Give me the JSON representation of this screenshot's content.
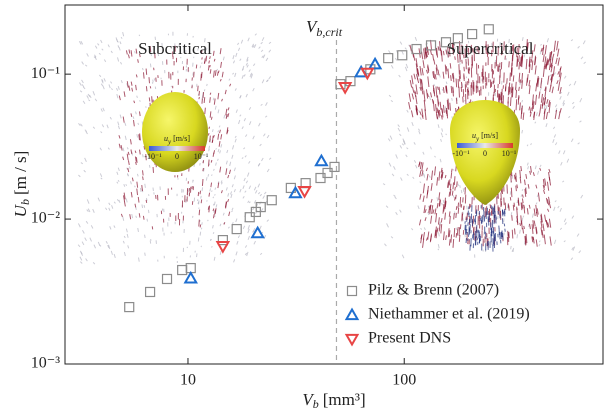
{
  "chart_data": {
    "type": "scatter",
    "xlabel": {
      "symbol": "V",
      "sub": "b",
      "unit": "[mm³]"
    },
    "ylabel": {
      "symbol": "U",
      "sub": "b",
      "unit": "[m / s]"
    },
    "xscale": "log",
    "yscale": "log",
    "xlim": [
      2.7,
      830
    ],
    "ylim": [
      0.001,
      0.3
    ],
    "xticks": [
      10,
      100
    ],
    "yticks": [
      {
        "value": 0.001,
        "label": "10⁻³"
      },
      {
        "value": 0.01,
        "label": "10⁻²"
      },
      {
        "value": 0.1,
        "label": "10⁻¹"
      }
    ],
    "critical_line": {
      "x": 48.6,
      "label": {
        "symbol": "V",
        "sub": "b,crit"
      }
    },
    "legend": "lower right",
    "series": [
      {
        "name": "Pilz & Brenn (2007)",
        "color": "#8c8c8c",
        "marker": "square",
        "x": [
          5.35,
          6.68,
          8.0,
          9.4,
          10.3,
          14.5,
          16.8,
          19.3,
          20.6,
          21.7,
          24.4,
          29.9,
          35,
          41,
          44.2,
          47.6,
          50.7,
          56.4,
          69.7,
          84.3,
          97.9,
          114,
          133,
          156,
          177,
          206,
          246
        ],
        "values": [
          0.00247,
          0.00314,
          0.00386,
          0.00445,
          0.00459,
          0.00716,
          0.00853,
          0.0103,
          0.0112,
          0.0121,
          0.0135,
          0.0164,
          0.0177,
          0.0192,
          0.0208,
          0.0229,
          0.0853,
          0.0895,
          0.108,
          0.129,
          0.135,
          0.149,
          0.158,
          0.166,
          0.177,
          0.189,
          0.204
        ]
      },
      {
        "name": "Niethammer et al. (2019)",
        "color": "#1f6fd0",
        "marker": "triangle-up",
        "x": [
          10.3,
          21.0,
          31.4,
          41.4,
          63.2,
          73.3
        ],
        "values": [
          0.0039,
          0.008,
          0.0151,
          0.0251,
          0.103,
          0.117
        ]
      },
      {
        "name": "Present DNS",
        "color": "#e84545",
        "marker": "triangle-down",
        "x": [
          14.5,
          34.6,
          53.3,
          67.5
        ],
        "values": [
          0.0065,
          0.0156,
          0.0813,
          0.102
        ]
      }
    ],
    "insets": [
      {
        "title": "Subcritical",
        "colorbar": {
          "symbol": "u",
          "sub": "y",
          "unit": " [m/s]",
          "min": "-10⁻¹",
          "mid": "0",
          "max": "10⁻¹"
        }
      },
      {
        "title": "Supercritical",
        "colorbar": {
          "symbol": "u",
          "sub": "y",
          "unit": " [m/s]",
          "min": "-10⁻¹",
          "mid": "0",
          "max": "10⁻¹"
        }
      }
    ]
  }
}
